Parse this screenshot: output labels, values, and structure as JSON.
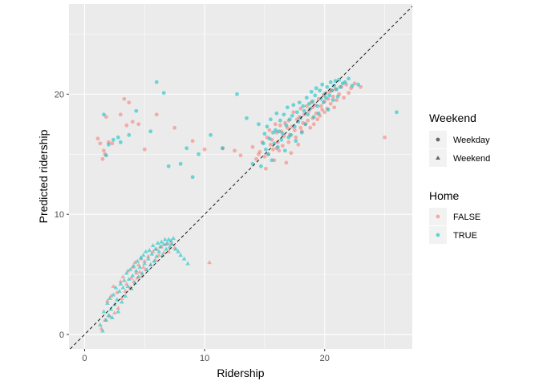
{
  "chart_data": {
    "type": "scatter",
    "xlabel": "Ridership",
    "ylabel": "Predicted ridership",
    "xlim": [
      -1.3,
      27.3
    ],
    "ylim": [
      -1.2,
      27.5
    ],
    "xticks": [
      0,
      10,
      20
    ],
    "yticks": [
      0,
      10,
      20
    ],
    "grid": true,
    "reference_line": {
      "type": "identity",
      "style": "dashed",
      "color": "#000000"
    },
    "legend_position": "right",
    "colors": {
      "FALSE": "#F8766D",
      "TRUE": "#00BFC4",
      "panel": "#EBEBEB",
      "grid": "#FFFFFF"
    },
    "legends": [
      {
        "title": "Weekend",
        "kind": "shape",
        "entries": [
          {
            "label": "Weekday",
            "shape": "circle"
          },
          {
            "label": "Weekend",
            "shape": "triangle"
          }
        ]
      },
      {
        "title": "Home",
        "kind": "color",
        "entries": [
          {
            "label": "FALSE",
            "color": "#F8766D"
          },
          {
            "label": "TRUE",
            "color": "#00BFC4"
          }
        ]
      }
    ],
    "series": [
      {
        "weekend": "Weekday",
        "home": "FALSE",
        "x": [
          1.1,
          1.3,
          1.5,
          1.6,
          1.7,
          1.8,
          2.0,
          2.3,
          3.0,
          3.3,
          3.5,
          3.7,
          4.0,
          4.5,
          5.0,
          6.0,
          7.5,
          9.0,
          10.0,
          11.5,
          12.5,
          13.0,
          14.0,
          14.3,
          14.5,
          14.6,
          14.8,
          15.0,
          15.1,
          15.2,
          15.3,
          15.4,
          15.5,
          15.6,
          15.7,
          15.8,
          15.9,
          16.0,
          16.0,
          16.1,
          16.2,
          16.3,
          16.4,
          16.5,
          16.6,
          16.7,
          16.8,
          16.9,
          17.0,
          17.0,
          17.1,
          17.2,
          17.3,
          17.4,
          17.5,
          17.6,
          17.7,
          17.8,
          17.9,
          18.0,
          18.0,
          18.1,
          18.2,
          18.3,
          18.4,
          18.5,
          18.6,
          18.7,
          18.8,
          18.9,
          19.0,
          19.0,
          19.1,
          19.2,
          19.3,
          19.4,
          19.5,
          19.6,
          19.7,
          19.8,
          19.9,
          20.0,
          20.0,
          20.1,
          20.2,
          20.3,
          20.4,
          20.5,
          20.6,
          20.7,
          20.8,
          20.9,
          21.0,
          21.2,
          21.4,
          21.6,
          21.8,
          22.0,
          22.2,
          22.5,
          23.0,
          25.0
        ],
        "y": [
          16.3,
          15.9,
          14.6,
          15.3,
          15.0,
          18.1,
          16.0,
          15.9,
          18.3,
          19.6,
          17.4,
          19.3,
          17.7,
          17.5,
          15.4,
          18.3,
          17.2,
          16.1,
          15.4,
          15.5,
          15.3,
          14.9,
          15.6,
          14.6,
          15.0,
          15.2,
          16.0,
          14.8,
          13.8,
          16.4,
          15.0,
          17.0,
          15.8,
          16.2,
          15.4,
          14.5,
          17.5,
          15.5,
          16.8,
          16.0,
          15.3,
          17.4,
          16.9,
          15.7,
          16.5,
          17.6,
          14.3,
          17.2,
          16.0,
          17.8,
          16.6,
          15.1,
          17.3,
          18.5,
          17.0,
          16.4,
          17.9,
          15.8,
          18.1,
          17.2,
          18.8,
          16.9,
          17.6,
          18.3,
          17.5,
          19.0,
          17.8,
          18.6,
          17.2,
          19.3,
          18.0,
          18.9,
          17.5,
          19.1,
          18.4,
          17.9,
          19.6,
          18.2,
          19.0,
          18.7,
          19.9,
          18.5,
          19.4,
          20.1,
          18.8,
          19.6,
          20.2,
          19.2,
          20.3,
          19.8,
          18.9,
          20.4,
          19.5,
          20.0,
          20.6,
          19.7,
          20.8,
          20.1,
          20.5,
          20.9,
          20.6,
          16.4
        ]
      },
      {
        "weekend": "Weekday",
        "home": "TRUE",
        "x": [
          1.6,
          1.8,
          2.0,
          2.4,
          2.8,
          3.0,
          3.7,
          4.3,
          5.5,
          6.0,
          6.6,
          7.0,
          8.0,
          8.5,
          9.0,
          9.5,
          10.5,
          11.5,
          12.7,
          13.5,
          14.0,
          14.5,
          14.7,
          14.9,
          15.0,
          15.1,
          15.2,
          15.3,
          15.4,
          15.5,
          15.6,
          15.7,
          15.8,
          15.9,
          16.0,
          16.1,
          16.2,
          16.3,
          16.4,
          16.5,
          16.6,
          16.7,
          16.8,
          16.9,
          17.0,
          17.1,
          17.2,
          17.3,
          17.4,
          17.5,
          17.6,
          17.7,
          17.8,
          17.9,
          18.0,
          18.1,
          18.2,
          18.3,
          18.4,
          18.5,
          18.6,
          18.7,
          18.8,
          18.9,
          19.0,
          19.1,
          19.2,
          19.3,
          19.4,
          19.5,
          19.6,
          19.7,
          19.8,
          19.9,
          20.0,
          20.1,
          20.2,
          20.3,
          20.4,
          20.5,
          20.6,
          20.7,
          20.8,
          20.9,
          21.0,
          21.1,
          21.2,
          21.3,
          21.5,
          21.7,
          22.0,
          22.3,
          22.8,
          26.0
        ],
        "y": [
          18.3,
          14.9,
          15.8,
          16.2,
          16.4,
          16.0,
          16.6,
          18.6,
          16.9,
          21.0,
          20.1,
          14.0,
          14.2,
          15.5,
          13.1,
          15.0,
          16.6,
          15.5,
          20.0,
          18.0,
          14.2,
          17.5,
          14.0,
          15.9,
          16.7,
          15.4,
          17.3,
          15.0,
          16.3,
          17.9,
          14.5,
          16.8,
          15.9,
          17.0,
          18.4,
          15.6,
          16.9,
          17.8,
          16.2,
          16.7,
          18.3,
          15.3,
          17.4,
          18.9,
          16.4,
          17.9,
          16.6,
          18.2,
          19.1,
          17.3,
          16.1,
          18.5,
          17.7,
          19.3,
          18.0,
          16.8,
          19.0,
          18.6,
          17.5,
          19.7,
          18.3,
          19.2,
          18.8,
          20.2,
          19.4,
          18.1,
          19.9,
          20.5,
          19.0,
          18.4,
          20.3,
          19.6,
          20.8,
          19.3,
          20.0,
          19.7,
          20.6,
          18.7,
          19.9,
          21.0,
          20.3,
          19.5,
          20.7,
          21.1,
          20.4,
          19.8,
          21.2,
          20.6,
          20.9,
          21.0,
          21.3,
          20.7,
          20.8,
          18.5
        ]
      },
      {
        "weekend": "Weekend",
        "home": "FALSE",
        "x": [
          1.4,
          1.7,
          1.9,
          2.1,
          2.2,
          2.4,
          2.5,
          2.7,
          2.8,
          3.0,
          3.1,
          3.2,
          3.4,
          3.5,
          3.6,
          3.8,
          3.9,
          4.0,
          4.1,
          4.2,
          4.3,
          4.4,
          4.5,
          4.6,
          4.7,
          4.8,
          4.9,
          5.0,
          5.1,
          5.3,
          5.5,
          5.7,
          5.9,
          6.0,
          6.2,
          6.4,
          6.6,
          6.8,
          7.0,
          7.2,
          7.5,
          10.4
        ],
        "y": [
          0.5,
          1.2,
          2.8,
          1.5,
          3.2,
          4.0,
          1.8,
          3.5,
          2.2,
          4.4,
          3.0,
          4.8,
          3.6,
          4.2,
          5.3,
          3.9,
          4.7,
          5.6,
          4.4,
          6.0,
          5.1,
          4.7,
          5.8,
          5.2,
          6.3,
          4.9,
          5.6,
          6.1,
          5.4,
          6.5,
          5.8,
          6.9,
          6.2,
          7.1,
          6.6,
          7.3,
          6.8,
          7.5,
          6.9,
          7.6,
          7.2,
          6.0
        ]
      },
      {
        "weekend": "Weekend",
        "home": "TRUE",
        "x": [
          1.3,
          1.5,
          1.6,
          1.8,
          1.9,
          2.0,
          2.1,
          2.2,
          2.3,
          2.4,
          2.5,
          2.6,
          2.7,
          2.8,
          2.9,
          3.0,
          3.1,
          3.2,
          3.3,
          3.4,
          3.5,
          3.6,
          3.7,
          3.8,
          3.9,
          4.0,
          4.1,
          4.2,
          4.3,
          4.4,
          4.5,
          4.6,
          4.7,
          4.8,
          4.9,
          5.0,
          5.1,
          5.2,
          5.3,
          5.4,
          5.5,
          5.6,
          5.7,
          5.8,
          5.9,
          6.0,
          6.1,
          6.2,
          6.3,
          6.4,
          6.5,
          6.6,
          6.7,
          6.8,
          6.9,
          7.0,
          7.1,
          7.2,
          7.3,
          7.4,
          7.6,
          7.8,
          8.0,
          8.3,
          8.6
        ],
        "y": [
          0.8,
          0.3,
          1.9,
          1.2,
          2.6,
          1.6,
          3.0,
          2.1,
          1.4,
          3.3,
          2.5,
          3.9,
          2.9,
          1.9,
          3.6,
          4.2,
          2.7,
          3.9,
          4.5,
          3.2,
          5.1,
          4.0,
          4.6,
          5.4,
          3.8,
          4.9,
          5.7,
          4.3,
          5.3,
          6.1,
          4.8,
          5.6,
          6.4,
          5.1,
          6.6,
          5.9,
          6.9,
          5.4,
          6.3,
          7.0,
          5.8,
          6.7,
          7.4,
          6.1,
          7.1,
          6.5,
          7.6,
          6.9,
          7.3,
          7.7,
          6.6,
          7.5,
          7.9,
          7.1,
          7.6,
          7.9,
          7.3,
          7.8,
          7.5,
          8.0,
          7.1,
          6.9,
          6.6,
          6.3,
          5.9
        ]
      }
    ]
  }
}
